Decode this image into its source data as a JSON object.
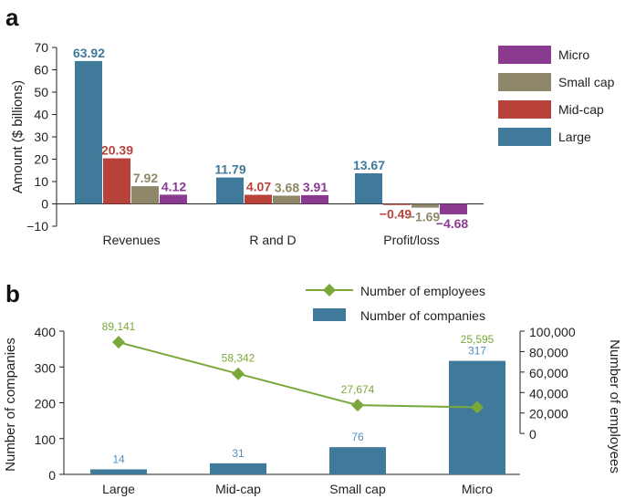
{
  "panel_a_label": "a",
  "panel_b_label": "b",
  "colors": {
    "large": "#3f7a9a",
    "midcap": "#b8423a",
    "smallcap": "#8f876a",
    "micro": "#8b3b8f",
    "employees": "#7aa83a",
    "companies_label": "#4f8fbf",
    "axis": "#222222"
  },
  "chart_data": [
    {
      "type": "bar",
      "title": "",
      "ylabel": "Amount ($ billions)",
      "xlabel": "",
      "ylim": [
        -10,
        70
      ],
      "yticks": [
        -10,
        0,
        10,
        20,
        30,
        40,
        50,
        60,
        70
      ],
      "ytick_labels": [
        "−10",
        "0",
        "10",
        "20",
        "30",
        "40",
        "50",
        "60",
        "70"
      ],
      "categories": [
        "Revenues",
        "R and D",
        "Profit/loss"
      ],
      "series": [
        {
          "name": "Large",
          "color_key": "large",
          "values": [
            63.92,
            11.79,
            13.67
          ],
          "labels": [
            "63.92",
            "11.79",
            "13.67"
          ]
        },
        {
          "name": "Mid-cap",
          "color_key": "midcap",
          "values": [
            20.39,
            4.07,
            -0.49
          ],
          "labels": [
            "20.39",
            "4.07",
            "−0.49"
          ]
        },
        {
          "name": "Small cap",
          "color_key": "smallcap",
          "values": [
            7.92,
            3.68,
            -1.69
          ],
          "labels": [
            "7.92",
            "3.68",
            "−1.69"
          ]
        },
        {
          "name": "Micro",
          "color_key": "micro",
          "values": [
            4.12,
            3.91,
            -4.68
          ],
          "labels": [
            "4.12",
            "3.91",
            "−4.68"
          ]
        }
      ],
      "legend": {
        "placement": "right",
        "items": [
          {
            "name": "Micro",
            "color_key": "micro"
          },
          {
            "name": "Small cap",
            "color_key": "smallcap"
          },
          {
            "name": "Mid-cap",
            "color_key": "midcap"
          },
          {
            "name": "Large",
            "color_key": "large"
          }
        ]
      }
    },
    {
      "type": "bar+line",
      "title": "",
      "categories": [
        "Large",
        "Mid-cap",
        "Small cap",
        "Micro"
      ],
      "ylabel_left": "Number of companies",
      "ylim_left": [
        0,
        400
      ],
      "yticks_left": [
        0,
        100,
        200,
        300,
        400
      ],
      "ylabel_right": "Number of employees",
      "ylim_right": [
        -40000,
        100000
      ],
      "yticks_right": [
        0,
        20000,
        40000,
        60000,
        80000,
        100000
      ],
      "ytick_labels_right": [
        "0",
        "20,000",
        "40,000",
        "60,000",
        "80,000",
        "100,000"
      ],
      "companies": {
        "name": "Number of companies",
        "values": [
          14,
          31,
          76,
          317
        ],
        "labels": [
          "14",
          "31",
          "76",
          "317"
        ]
      },
      "employees": {
        "name": "Number of employees",
        "values": [
          89141,
          58342,
          27674,
          25595
        ],
        "labels": [
          "89,141",
          "58,342",
          "27,674",
          "25,595"
        ]
      },
      "legend": {
        "placement": "top-center"
      }
    }
  ]
}
